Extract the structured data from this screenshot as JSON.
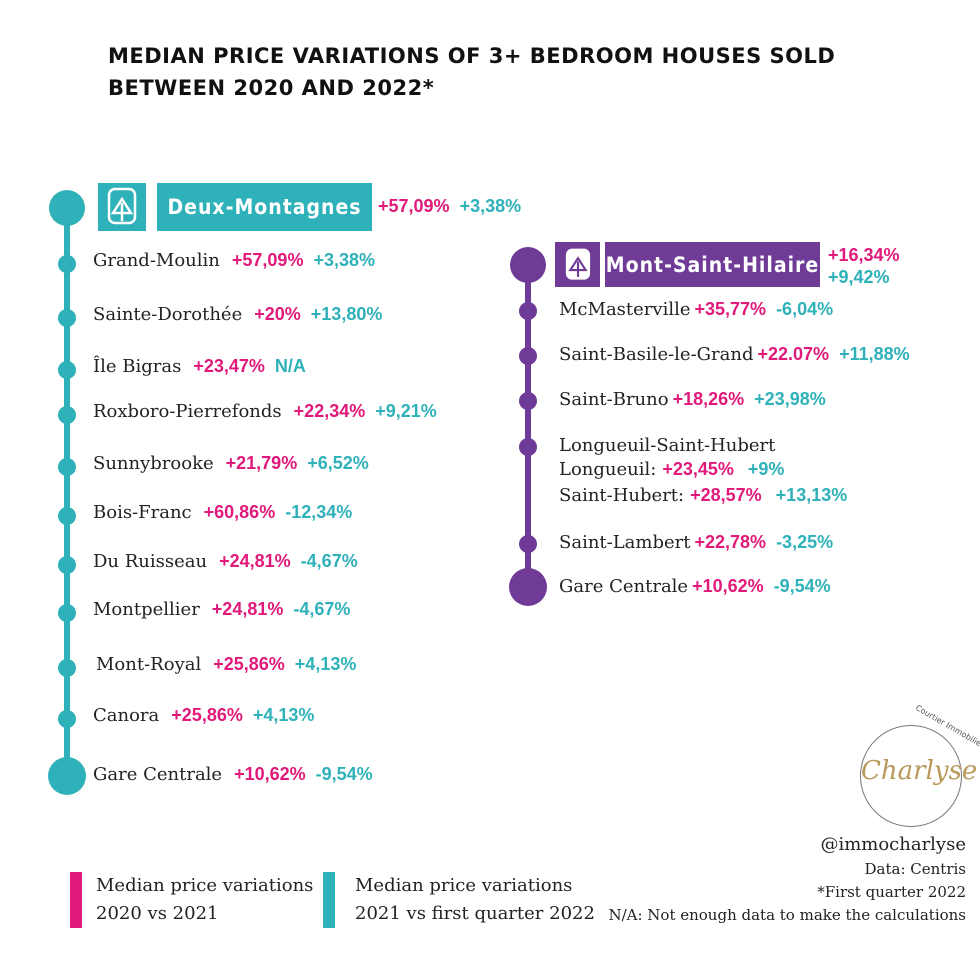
{
  "title_lines": [
    "MEDIAN PRICE VARIATIONS OF 3+ BEDROOM HOUSES SOLD",
    "BETWEEN 2020 AND 2022*"
  ],
  "colors": {
    "pink": "#e0197a",
    "teal": "#2fb1b9",
    "purple": "#6f3b96"
  },
  "left_line": {
    "name": "Deux-Montagnes",
    "icon": "train-icon",
    "v2021": "+57,09%",
    "v2022": "+3,38%",
    "stations": [
      {
        "name": "Grand-Moulin",
        "v2021": "+57,09%",
        "v2022": "+3,38%"
      },
      {
        "name": "Sainte-Dorothée",
        "v2021": "+20%",
        "v2022": "+13,80%"
      },
      {
        "name": "Île Bigras",
        "v2021": "+23,47%",
        "v2022": "N/A"
      },
      {
        "name": "Roxboro-Pierrefonds",
        "v2021": "+22,34%",
        "v2022": "+9,21%"
      },
      {
        "name": "Sunnybrooke",
        "v2021": "+21,79%",
        "v2022": "+6,52%"
      },
      {
        "name": "Bois-Franc",
        "v2021": "+60,86%",
        "v2022": "-12,34%"
      },
      {
        "name": "Du Ruisseau",
        "v2021": "+24,81%",
        "v2022": "-4,67%"
      },
      {
        "name": "Montpellier",
        "v2021": "+24,81%",
        "v2022": "-4,67%"
      },
      {
        "name": "Mont-Royal",
        "v2021": "+25,86%",
        "v2022": "+4,13%"
      },
      {
        "name": "Canora",
        "v2021": "+25,86%",
        "v2022": "+4,13%"
      },
      {
        "name": "Gare Centrale",
        "v2021": "+10,62%",
        "v2022": "-9,54%"
      }
    ]
  },
  "right_line": {
    "name": "Mont-Saint-Hilaire",
    "icon": "train-icon",
    "v2021": "+16,34%",
    "v2022": "+9,42%",
    "stations": [
      {
        "name": "McMasterville",
        "v2021": "+35,77%",
        "v2022": "-6,04%"
      },
      {
        "name": "Saint-Basile-le-Grand",
        "v2021": "+22.07%",
        "v2022": "+11,88%"
      },
      {
        "name": "Saint-Bruno",
        "v2021": "+18,26%",
        "v2022": "+23,98%"
      },
      {
        "name": "Longueuil-Saint-Hubert",
        "sub": [
          {
            "name": "Longueuil:",
            "v2021": "+23,45%",
            "v2022": "+9%"
          },
          {
            "name": "Saint-Hubert:",
            "v2021": "+28,57%",
            "v2022": "+13,13%"
          }
        ]
      },
      {
        "name": "Saint-Lambert",
        "v2021": "+22,78%",
        "v2022": "-3,25%"
      },
      {
        "name": "Gare Centrale",
        "v2021": "+10,62%",
        "v2022": "-9,54%"
      }
    ]
  },
  "logo": {
    "name": "Charlyse",
    "tagline": "Courtier Immobilier"
  },
  "footer": {
    "handle": "@immocharlyse",
    "source": "Data: Centris",
    "note": "*First quarter 2022",
    "na": "N/A: Not enough data to make the calculations"
  },
  "legend": [
    {
      "line1": "Median price variations",
      "line2": "2020 vs 2021",
      "color": "#e0197a"
    },
    {
      "line1": "Median price variations",
      "line2": "2021 vs first quarter 2022",
      "color": "#2fb1b9"
    }
  ]
}
